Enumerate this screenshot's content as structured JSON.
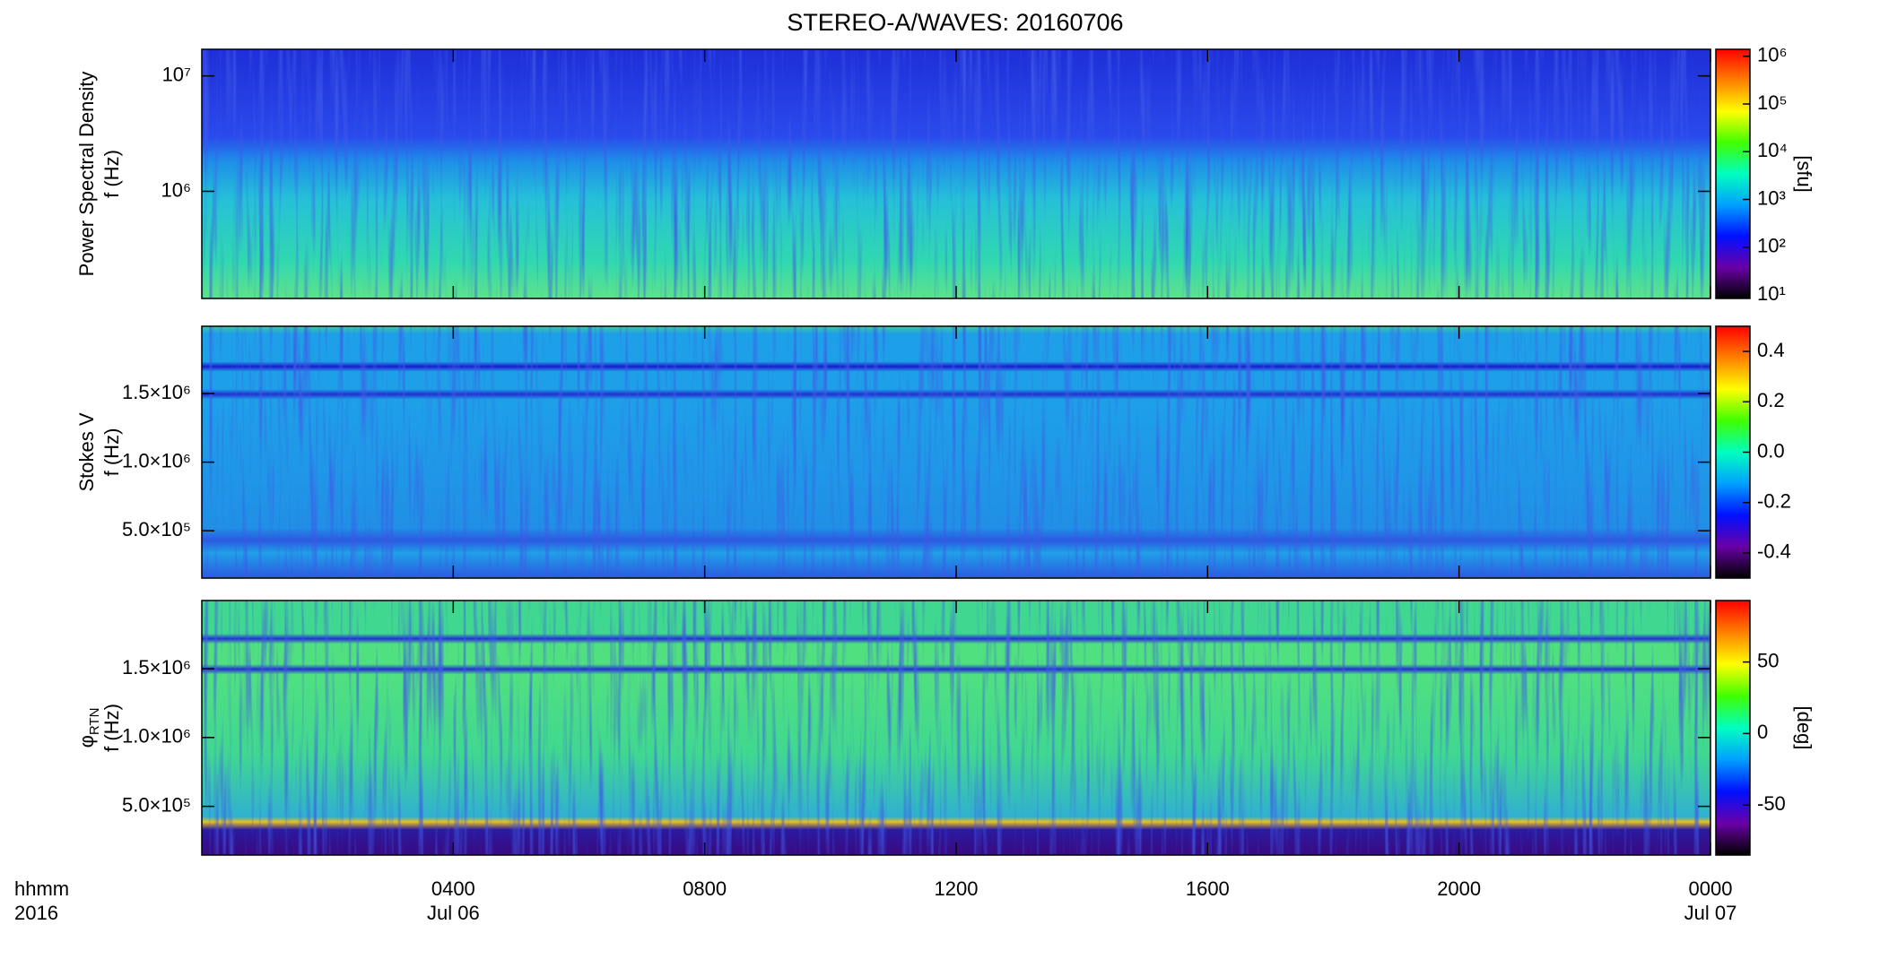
{
  "chart_data": [
    {
      "type": "spectrogram",
      "title": "STEREO-A/WAVES: 20160706",
      "ylabel": [
        "Power Spectral Density",
        "f (Hz)"
      ],
      "yscale": "log",
      "ylim": [
        118000,
        17000000
      ],
      "yticks": [
        {
          "value": 1000000,
          "label": "10⁶"
        },
        {
          "value": 10000000,
          "label": "10⁷"
        }
      ],
      "colormap": [
        "#000000",
        "#6a00a8",
        "#0010ff",
        "#00a0ff",
        "#00ffc0",
        "#40ff00",
        "#ffff00",
        "#ff8000",
        "#ff0000"
      ],
      "colorbar": {
        "scale": "log",
        "clim": [
          8.4,
          1400000
        ],
        "label": "[sfu]",
        "ticks": [
          {
            "value": 10,
            "label": "10¹"
          },
          {
            "value": 100,
            "label": "10²"
          },
          {
            "value": 1000,
            "label": "10³"
          },
          {
            "value": 10000,
            "label": "10⁴"
          },
          {
            "value": 100000,
            "label": "10⁵"
          },
          {
            "value": 1000000,
            "label": "10⁶"
          }
        ]
      }
    },
    {
      "type": "spectrogram",
      "ylabel": [
        "Stokes V",
        "f (Hz)"
      ],
      "yscale": "linear",
      "ylim": [
        155000,
        1990000
      ],
      "yticks": [
        {
          "value": 500000,
          "label": "5.0×10⁵"
        },
        {
          "value": 1000000,
          "label": "1.0×10⁶"
        },
        {
          "value": 1500000,
          "label": "1.5×10⁶"
        }
      ],
      "colormap": [
        "#000000",
        "#6a00a8",
        "#0010ff",
        "#00a0ff",
        "#00ffc0",
        "#40ff00",
        "#ffff00",
        "#ff8000",
        "#ff0000"
      ],
      "colorbar": {
        "scale": "linear",
        "clim": [
          -0.5,
          0.5
        ],
        "ticks": [
          -0.4,
          -0.2,
          {
            "value": 0,
            "label": "0.0"
          },
          0.2,
          0.4
        ]
      }
    },
    {
      "type": "spectrogram",
      "ylabel": [
        "φ",
        "f (Hz)"
      ],
      "ylabel_subscript": "RTN",
      "yscale": "linear",
      "ylim": [
        146000,
        1995000
      ],
      "yticks": [
        {
          "value": 500000,
          "label": "5.0×10⁵"
        },
        {
          "value": 1000000,
          "label": "1.0×10⁶"
        },
        {
          "value": 1500000,
          "label": "1.5×10⁶"
        }
      ],
      "colormap": [
        "#000000",
        "#6a00a8",
        "#0010ff",
        "#00a0ff",
        "#00ffc0",
        "#40ff00",
        "#ffff00",
        "#ff8000",
        "#ff0000"
      ],
      "colorbar": {
        "scale": "linear",
        "clim": [
          -85,
          93
        ],
        "label": "[deg]",
        "ticks": [
          -50,
          0,
          50
        ]
      },
      "xlabel": [
        "hhmm",
        "2016"
      ],
      "xlim": [
        0,
        24
      ],
      "xticks": [
        {
          "value": 4,
          "label": "0400"
        },
        {
          "value": 8,
          "label": "0800"
        },
        {
          "value": 12,
          "label": "1200"
        },
        {
          "value": 16,
          "label": "1600"
        },
        {
          "value": 20,
          "label": "2000"
        },
        {
          "value": 24,
          "label": "0000"
        }
      ],
      "xtick_dates": [
        "Jul 06",
        null,
        null,
        null,
        null,
        "Jul 07"
      ]
    }
  ]
}
